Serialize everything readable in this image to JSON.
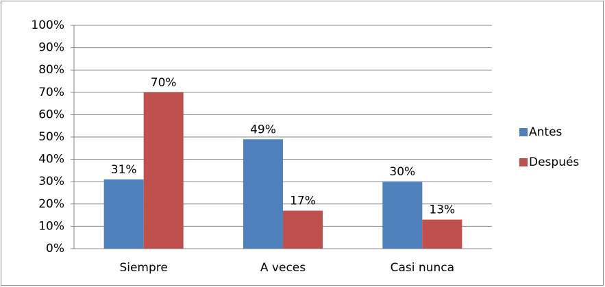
{
  "chart_data": {
    "type": "bar",
    "categories": [
      "Siempre",
      "A veces",
      "Casi nunca"
    ],
    "series": [
      {
        "name": "Antes",
        "color": "#4f81bd",
        "values": [
          31,
          49,
          30
        ],
        "value_labels": [
          "31%",
          "49%",
          "30%"
        ]
      },
      {
        "name": "Después",
        "color": "#c0504d",
        "values": [
          70,
          17,
          13
        ],
        "value_labels": [
          "70%",
          "17%",
          "13%"
        ]
      }
    ],
    "ylim": [
      0,
      100
    ],
    "yticks": [
      {
        "value": 0,
        "label": "0%"
      },
      {
        "value": 10,
        "label": "10%"
      },
      {
        "value": 20,
        "label": "20%"
      },
      {
        "value": 30,
        "label": "30%"
      },
      {
        "value": 40,
        "label": "40%"
      },
      {
        "value": 50,
        "label": "50%"
      },
      {
        "value": 60,
        "label": "60%"
      },
      {
        "value": 70,
        "label": "70%"
      },
      {
        "value": 80,
        "label": "80%"
      },
      {
        "value": 90,
        "label": "90%"
      },
      {
        "value": 100,
        "label": "100%"
      }
    ],
    "grid": true,
    "legend": "right"
  }
}
